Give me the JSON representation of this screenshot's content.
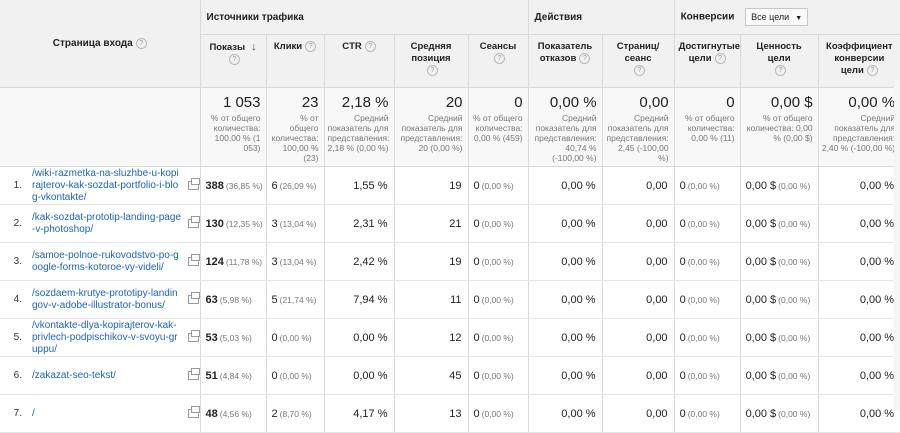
{
  "header": {
    "page_col": "Страница входа",
    "group_traffic": "Источники трафика",
    "group_actions": "Действия",
    "group_conv": "Конверсии",
    "conv_select": "Все цели",
    "cols": [
      "Показы",
      "Клики",
      "CTR",
      "Средняя позиция",
      "Сеансы",
      "Показатель отказов",
      "Страниц/сеанс",
      "Достигнутые цели",
      "Ценность цели",
      "Коэффициент конверсии цели"
    ]
  },
  "totals": [
    {
      "value": "1 053",
      "sub": "% от общего количества: 100,00 % (1 053)"
    },
    {
      "value": "23",
      "sub": "% от общего количества: 100,00 % (23)"
    },
    {
      "value": "2,18 %",
      "sub": "Средний показатель для представления: 2,18 % (0,00 %)"
    },
    {
      "value": "20",
      "sub": "Средний показатель для представления: 20 (0,00 %)"
    },
    {
      "value": "0",
      "sub": "% от общего количества: 0,00 % (459)"
    },
    {
      "value": "0,00 %",
      "sub": "Средний показатель для представления: 40,74 % (-100,00 %)"
    },
    {
      "value": "0,00",
      "sub": "Средний показатель для представления: 2,45 (-100,00 %)"
    },
    {
      "value": "0",
      "sub": "% от общего количества: 0,00 % (11)"
    },
    {
      "value": "0,00 $",
      "sub": "% от общего количества: 0,00 % (0,00 $)"
    },
    {
      "value": "0,00 %",
      "sub": "Средний показатель для представления: 2,40 % (-100,00 %)"
    }
  ],
  "rows": [
    {
      "idx": "1.",
      "page": "/wiki-razmetka-na-sluzhbe-u-kopirajterov-kak-sozdat-portfolio-i-blog-vkontakte/",
      "shows": "388",
      "shows_pct": "(36,85 %)",
      "clicks": "6",
      "clicks_pct": "(26,09 %)",
      "ctr": "1,55 %",
      "pos": "19",
      "sess": "0",
      "sess_pct": "(0,00 %)",
      "bounce": "0,00 %",
      "pps": "0,00",
      "goals": "0",
      "goals_pct": "(0,00 %)",
      "value": "0,00 $",
      "value_pct": "(0,00 %)",
      "conv": "0,00 %"
    },
    {
      "idx": "2.",
      "page": "/kak-sozdat-prototip-landing-page-v-photoshop/",
      "shows": "130",
      "shows_pct": "(12,35 %)",
      "clicks": "3",
      "clicks_pct": "(13,04 %)",
      "ctr": "2,31 %",
      "pos": "21",
      "sess": "0",
      "sess_pct": "(0,00 %)",
      "bounce": "0,00 %",
      "pps": "0,00",
      "goals": "0",
      "goals_pct": "(0,00 %)",
      "value": "0,00 $",
      "value_pct": "(0,00 %)",
      "conv": "0,00 %"
    },
    {
      "idx": "3.",
      "page": "/samoe-polnoe-rukovodstvo-po-google-forms-kotoroe-vy-videli/",
      "shows": "124",
      "shows_pct": "(11,78 %)",
      "clicks": "3",
      "clicks_pct": "(13,04 %)",
      "ctr": "2,42 %",
      "pos": "19",
      "sess": "0",
      "sess_pct": "(0,00 %)",
      "bounce": "0,00 %",
      "pps": "0,00",
      "goals": "0",
      "goals_pct": "(0,00 %)",
      "value": "0,00 $",
      "value_pct": "(0,00 %)",
      "conv": "0,00 %"
    },
    {
      "idx": "4.",
      "page": "/sozdaem-krutye-prototipy-landingov-v-adobe-illustrator-bonus/",
      "shows": "63",
      "shows_pct": "(5,98 %)",
      "clicks": "5",
      "clicks_pct": "(21,74 %)",
      "ctr": "7,94 %",
      "pos": "11",
      "sess": "0",
      "sess_pct": "(0,00 %)",
      "bounce": "0,00 %",
      "pps": "0,00",
      "goals": "0",
      "goals_pct": "(0,00 %)",
      "value": "0,00 $",
      "value_pct": "(0,00 %)",
      "conv": "0,00 %"
    },
    {
      "idx": "5.",
      "page": "/vkontakte-dlya-kopirajterov-kak-privlech-podpischikov-v-svoyu-gruppu/",
      "shows": "53",
      "shows_pct": "(5,03 %)",
      "clicks": "0",
      "clicks_pct": "(0,00 %)",
      "ctr": "0,00 %",
      "pos": "12",
      "sess": "0",
      "sess_pct": "(0,00 %)",
      "bounce": "0,00 %",
      "pps": "0,00",
      "goals": "0",
      "goals_pct": "(0,00 %)",
      "value": "0,00 $",
      "value_pct": "(0,00 %)",
      "conv": "0,00 %"
    },
    {
      "idx": "6.",
      "page": "/zakazat-seo-tekst/",
      "shows": "51",
      "shows_pct": "(4,84 %)",
      "clicks": "0",
      "clicks_pct": "(0,00 %)",
      "ctr": "0,00 %",
      "pos": "45",
      "sess": "0",
      "sess_pct": "(0,00 %)",
      "bounce": "0,00 %",
      "pps": "0,00",
      "goals": "0",
      "goals_pct": "(0,00 %)",
      "value": "0,00 $",
      "value_pct": "(0,00 %)",
      "conv": "0,00 %"
    },
    {
      "idx": "7.",
      "page": "/",
      "shows": "48",
      "shows_pct": "(4,56 %)",
      "clicks": "2",
      "clicks_pct": "(8,70 %)",
      "ctr": "4,17 %",
      "pos": "13",
      "sess": "0",
      "sess_pct": "(0,00 %)",
      "bounce": "0,00 %",
      "pps": "0,00",
      "goals": "0",
      "goals_pct": "(0,00 %)",
      "value": "0,00 $",
      "value_pct": "(0,00 %)",
      "conv": "0,00 %"
    }
  ]
}
